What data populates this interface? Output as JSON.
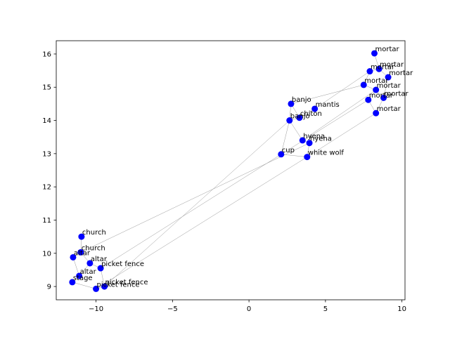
{
  "chart_data": {
    "type": "scatter",
    "title": "",
    "xlabel": "",
    "ylabel": "",
    "xlim": [
      -12.6,
      10.2
    ],
    "ylim": [
      8.6,
      16.4
    ],
    "xticks": [
      -10,
      -5,
      0,
      5,
      10
    ],
    "yticks": [
      9,
      10,
      11,
      12,
      13,
      14,
      15,
      16
    ],
    "grid": false,
    "legend": "none",
    "point_color": "#0000ff",
    "edge_color": "#999999",
    "points": [
      {
        "label": "mortar",
        "x": 8.2,
        "y": 16.02
      },
      {
        "label": "mortar",
        "x": 8.5,
        "y": 15.55
      },
      {
        "label": "mortar",
        "x": 7.9,
        "y": 15.48
      },
      {
        "label": "mortar",
        "x": 9.1,
        "y": 15.3
      },
      {
        "label": "mortar",
        "x": 7.5,
        "y": 15.07
      },
      {
        "label": "mortar",
        "x": 8.3,
        "y": 14.92
      },
      {
        "label": "mortar",
        "x": 8.8,
        "y": 14.68
      },
      {
        "label": "mortar",
        "x": 7.8,
        "y": 14.62
      },
      {
        "label": "mortar",
        "x": 8.3,
        "y": 14.22
      },
      {
        "label": "banjo",
        "x": 2.75,
        "y": 14.5
      },
      {
        "label": "mantis",
        "x": 4.3,
        "y": 14.35
      },
      {
        "label": "chiton",
        "x": 3.3,
        "y": 14.08
      },
      {
        "label": "banjo",
        "x": 2.65,
        "y": 14.0
      },
      {
        "label": "hyena",
        "x": 3.5,
        "y": 13.4
      },
      {
        "label": "hyena",
        "x": 3.95,
        "y": 13.32
      },
      {
        "label": "cup",
        "x": 2.1,
        "y": 12.98
      },
      {
        "label": "white wolf",
        "x": 3.8,
        "y": 12.9
      },
      {
        "label": "church",
        "x": -10.95,
        "y": 10.5
      },
      {
        "label": "church",
        "x": -11.0,
        "y": 10.03
      },
      {
        "label": "altar",
        "x": -11.5,
        "y": 9.88
      },
      {
        "label": "altar",
        "x": -10.4,
        "y": 9.7
      },
      {
        "label": "picket fence",
        "x": -9.7,
        "y": 9.55
      },
      {
        "label": "altar",
        "x": -11.1,
        "y": 9.32
      },
      {
        "label": "stage",
        "x": -11.55,
        "y": 9.13
      },
      {
        "label": "picket fence",
        "x": -9.45,
        "y": 9.0
      },
      {
        "label": "picket fence",
        "x": -10.0,
        "y": 8.93
      }
    ],
    "edges": [
      [
        0,
        1
      ],
      [
        1,
        2
      ],
      [
        1,
        3
      ],
      [
        2,
        4
      ],
      [
        3,
        6
      ],
      [
        4,
        5
      ],
      [
        5,
        7
      ],
      [
        6,
        8
      ],
      [
        7,
        8
      ],
      [
        5,
        6
      ],
      [
        9,
        11
      ],
      [
        10,
        11
      ],
      [
        11,
        12
      ],
      [
        12,
        13
      ],
      [
        13,
        14
      ],
      [
        12,
        15
      ],
      [
        14,
        16
      ],
      [
        15,
        16
      ],
      [
        9,
        12
      ],
      [
        10,
        2
      ],
      [
        9,
        4
      ],
      [
        13,
        5
      ],
      [
        16,
        8
      ],
      [
        15,
        7
      ],
      [
        17,
        18
      ],
      [
        18,
        19
      ],
      [
        18,
        20
      ],
      [
        19,
        22
      ],
      [
        20,
        21
      ],
      [
        22,
        23
      ],
      [
        23,
        25
      ],
      [
        21,
        24
      ],
      [
        24,
        25
      ],
      [
        20,
        22
      ],
      [
        21,
        15
      ],
      [
        24,
        12
      ],
      [
        18,
        14
      ],
      [
        25,
        16
      ]
    ]
  }
}
